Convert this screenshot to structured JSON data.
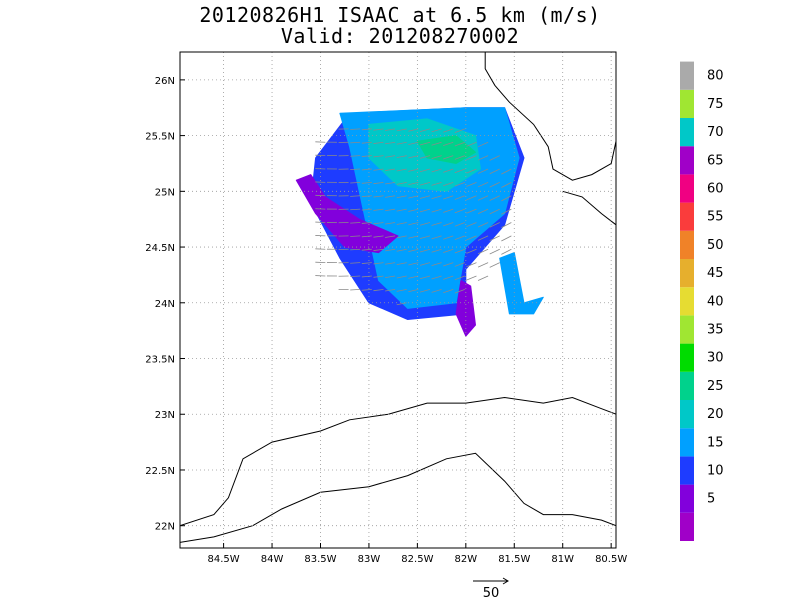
{
  "title": "20120826H1 ISAAC at 6.5 km (m/s)",
  "subtitle": "Valid: 201208270002",
  "chart_data": {
    "type": "heatmap",
    "title": "20120826H1 ISAAC at 6.5 km (m/s)",
    "subtitle": "Valid: 201208270002",
    "xlim": [
      -84.95,
      -80.45
    ],
    "ylim": [
      21.8,
      26.25
    ],
    "x_ticks": [
      {
        "value": -84.5,
        "label": "84.5W"
      },
      {
        "value": -84.0,
        "label": "84W"
      },
      {
        "value": -83.5,
        "label": "83.5W"
      },
      {
        "value": -83.0,
        "label": "83W"
      },
      {
        "value": -82.5,
        "label": "82.5W"
      },
      {
        "value": -82.0,
        "label": "82W"
      },
      {
        "value": -81.5,
        "label": "81.5W"
      },
      {
        "value": -81.0,
        "label": "81W"
      },
      {
        "value": -80.5,
        "label": "80.5W"
      }
    ],
    "y_ticks": [
      {
        "value": 22.0,
        "label": "22N"
      },
      {
        "value": 22.5,
        "label": "22.5N"
      },
      {
        "value": 23.0,
        "label": "23N"
      },
      {
        "value": 23.5,
        "label": "23.5N"
      },
      {
        "value": 24.0,
        "label": "24N"
      },
      {
        "value": 24.5,
        "label": "24.5N"
      },
      {
        "value": 25.0,
        "label": "25N"
      },
      {
        "value": 25.5,
        "label": "25.5N"
      },
      {
        "value": 26.0,
        "label": "26N"
      }
    ],
    "grid": true,
    "colorbar": [
      {
        "label": "",
        "color": "#a000c8"
      },
      {
        "label": "5",
        "color": "#8200dc"
      },
      {
        "label": "10",
        "color": "#1e3cff"
      },
      {
        "label": "15",
        "color": "#00a0ff"
      },
      {
        "label": "20",
        "color": "#00c8c8"
      },
      {
        "label": "25",
        "color": "#00d28c"
      },
      {
        "label": "30",
        "color": "#00dc00"
      },
      {
        "label": "35",
        "color": "#a0e632"
      },
      {
        "label": "40",
        "color": "#e6dc32"
      },
      {
        "label": "45",
        "color": "#e6af2d"
      },
      {
        "label": "50",
        "color": "#f08228"
      },
      {
        "label": "55",
        "color": "#fa3c3c"
      },
      {
        "label": "60",
        "color": "#f00082"
      },
      {
        "label": "65",
        "color": "#a000c8"
      },
      {
        "label": "70",
        "color": "#00c8c8"
      },
      {
        "label": "75",
        "color": "#a0e632"
      },
      {
        "label": "80",
        "color": "#aaaaaa"
      }
    ],
    "wind_speed_regions": [
      {
        "color": "#1e3cff",
        "points": [
          [
            -83.55,
            25.3
          ],
          [
            -83.2,
            25.7
          ],
          [
            -82.0,
            25.75
          ],
          [
            -81.6,
            25.75
          ],
          [
            -81.4,
            25.3
          ],
          [
            -81.6,
            24.7
          ],
          [
            -82.0,
            24.3
          ],
          [
            -82.0,
            23.9
          ],
          [
            -82.6,
            23.85
          ],
          [
            -83.0,
            24.0
          ],
          [
            -83.3,
            24.4
          ],
          [
            -83.6,
            24.9
          ]
        ]
      },
      {
        "color": "#00a0ff",
        "points": [
          [
            -83.3,
            25.7
          ],
          [
            -82.0,
            25.75
          ],
          [
            -81.6,
            25.75
          ],
          [
            -81.45,
            25.3
          ],
          [
            -81.6,
            24.8
          ],
          [
            -82.0,
            24.5
          ],
          [
            -82.1,
            24.0
          ],
          [
            -82.6,
            23.95
          ],
          [
            -82.9,
            24.2
          ],
          [
            -83.0,
            24.6
          ],
          [
            -83.1,
            25.0
          ],
          [
            -83.2,
            25.4
          ]
        ]
      },
      {
        "color": "#00c8c8",
        "points": [
          [
            -83.0,
            25.6
          ],
          [
            -82.4,
            25.65
          ],
          [
            -81.9,
            25.5
          ],
          [
            -81.85,
            25.2
          ],
          [
            -82.2,
            25.0
          ],
          [
            -82.7,
            25.05
          ],
          [
            -83.0,
            25.3
          ]
        ]
      },
      {
        "color": "#00d28c",
        "points": [
          [
            -82.5,
            25.45
          ],
          [
            -82.1,
            25.5
          ],
          [
            -81.9,
            25.35
          ],
          [
            -82.1,
            25.25
          ],
          [
            -82.4,
            25.3
          ]
        ]
      },
      {
        "color": "#8200dc",
        "points": [
          [
            -83.75,
            25.1
          ],
          [
            -83.55,
            24.8
          ],
          [
            -83.25,
            24.5
          ],
          [
            -82.9,
            24.45
          ],
          [
            -82.7,
            24.6
          ],
          [
            -83.1,
            24.75
          ],
          [
            -83.45,
            24.95
          ],
          [
            -83.6,
            25.15
          ]
        ]
      },
      {
        "color": "#8200dc",
        "points": [
          [
            -82.05,
            24.2
          ],
          [
            -81.95,
            24.15
          ],
          [
            -81.9,
            23.8
          ],
          [
            -82.0,
            23.7
          ],
          [
            -82.1,
            23.9
          ]
        ]
      },
      {
        "color": "#00a0ff",
        "points": [
          [
            -81.65,
            24.4
          ],
          [
            -81.5,
            24.45
          ],
          [
            -81.4,
            24.0
          ],
          [
            -81.2,
            24.05
          ],
          [
            -81.3,
            23.9
          ],
          [
            -81.55,
            23.9
          ]
        ]
      }
    ],
    "vector_scale": {
      "label": "50",
      "value": 50
    }
  }
}
